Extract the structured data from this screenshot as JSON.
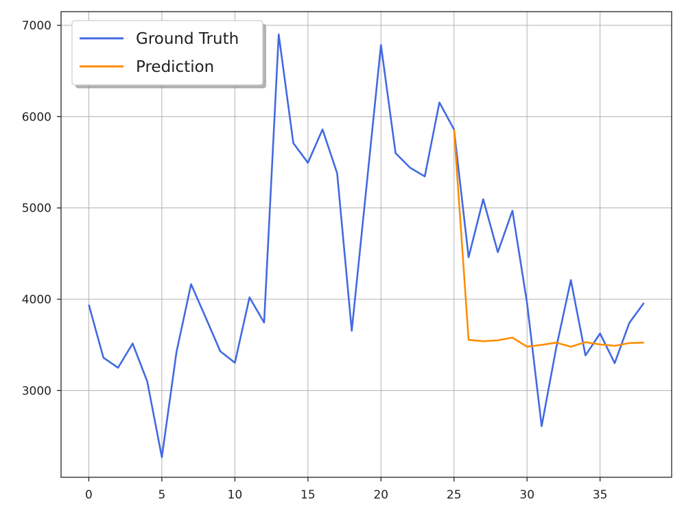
{
  "chart_data": {
    "type": "line",
    "title": "",
    "xlabel": "",
    "ylabel": "",
    "xlim": [
      -1.9,
      39.9
    ],
    "ylim": [
      2050,
      7150
    ],
    "xticks": [
      0,
      5,
      10,
      15,
      20,
      25,
      30,
      35
    ],
    "yticks": [
      3000,
      4000,
      5000,
      6000,
      7000
    ],
    "grid": true,
    "legend": "top-left",
    "series": [
      {
        "name": "Ground Truth",
        "color": "#4169E1",
        "x": [
          0,
          1,
          2,
          3,
          4,
          5,
          6,
          7,
          8,
          9,
          10,
          11,
          12,
          13,
          14,
          15,
          16,
          17,
          18,
          19,
          20,
          21,
          22,
          23,
          24,
          25,
          26,
          27,
          28,
          29,
          30,
          31,
          32,
          33,
          34,
          35,
          36,
          37,
          38
        ],
        "values": [
          3940,
          3360,
          3250,
          3515,
          3100,
          2270,
          3420,
          4165,
          3800,
          3430,
          3305,
          4020,
          3745,
          6900,
          5710,
          5495,
          5860,
          5380,
          3655,
          5220,
          6785,
          5600,
          5440,
          5345,
          6155,
          5860,
          4460,
          5095,
          4515,
          4970,
          3960,
          2610,
          3470,
          4210,
          3385,
          3625,
          3300,
          3740,
          3960
        ]
      },
      {
        "name": "Prediction",
        "color": "#FF8C00",
        "x": [
          25,
          26,
          27,
          28,
          29,
          30,
          31,
          32,
          33,
          34,
          35,
          36,
          37,
          38
        ],
        "values": [
          5860,
          3555,
          3540,
          3550,
          3580,
          3480,
          3500,
          3525,
          3480,
          3530,
          3505,
          3490,
          3520,
          3525
        ]
      }
    ]
  }
}
